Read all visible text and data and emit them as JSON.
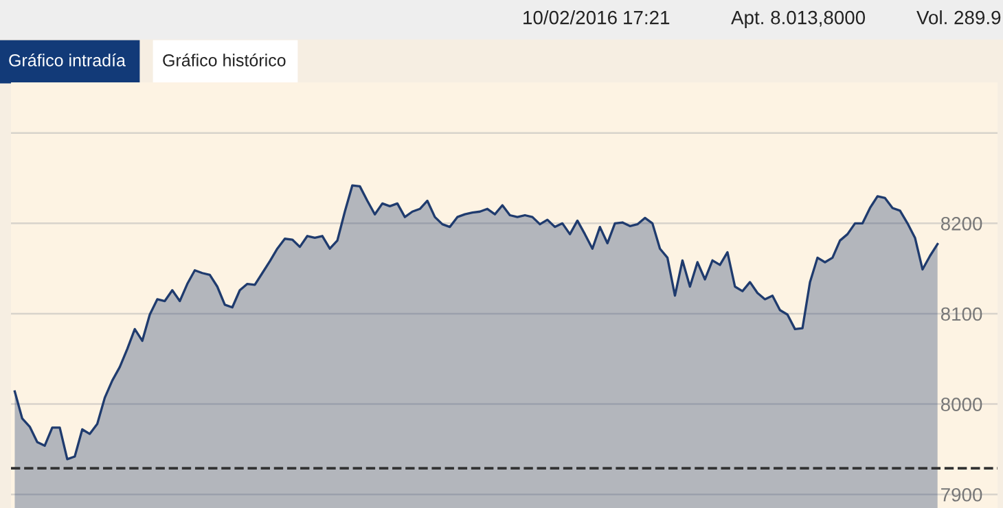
{
  "chart_data": {
    "type": "area",
    "categories": [
      null,
      null,
      null,
      null,
      null,
      null,
      null,
      null,
      null,
      null,
      null,
      null,
      null,
      null,
      null,
      null,
      null,
      null,
      null,
      null,
      null,
      null,
      null,
      null,
      null,
      null,
      null,
      null,
      null,
      null,
      null,
      null,
      null,
      null,
      null,
      null,
      null,
      null,
      null,
      null,
      null,
      null,
      null,
      null,
      null,
      null,
      null,
      null,
      null,
      null,
      null,
      null,
      null,
      null,
      null,
      null,
      null,
      null,
      null,
      null,
      null,
      null,
      null,
      null,
      null,
      null,
      null,
      null,
      null,
      null,
      null,
      null,
      null,
      null,
      null,
      null,
      null,
      null,
      null,
      null,
      null,
      null,
      null,
      null,
      null,
      null,
      null,
      null,
      null,
      null,
      null,
      null,
      null,
      null,
      null,
      null,
      null,
      null,
      null,
      null,
      null,
      null,
      null,
      null,
      null,
      null,
      null,
      null,
      null,
      null,
      null,
      null,
      null,
      null,
      null,
      null,
      null,
      null,
      null,
      null,
      null,
      null,
      null,
      null
    ],
    "series": [
      {
        "color": "#1f3b6e",
        "values": [
          8014,
          7984,
          7975,
          7958,
          7954,
          7974,
          7974,
          7939,
          7942,
          7972,
          7967,
          7978,
          8007,
          8026,
          8041,
          8061,
          8083,
          8070,
          8099,
          8116,
          8114,
          8126,
          8114,
          8133,
          8148,
          8145,
          8143,
          8130,
          8110,
          8107,
          8126,
          8133,
          8132,
          8145,
          8158,
          8172,
          8183,
          8182,
          8174,
          8186,
          8184,
          8186,
          8172,
          8181,
          8213,
          8242,
          8241,
          8225,
          8210,
          8222,
          8219,
          8222,
          8207,
          8213,
          8216,
          8225,
          8207,
          8199,
          8196,
          8207,
          8210,
          8212,
          8213,
          8216,
          8210,
          8220,
          8209,
          8207,
          8209,
          8207,
          8199,
          8204,
          8196,
          8200,
          8188,
          8203,
          8188,
          8172,
          8196,
          8178,
          8200,
          8201,
          8197,
          8199,
          8206,
          8200,
          8172,
          8162,
          8120,
          8159,
          8130,
          8157,
          8138,
          8159,
          8154,
          8168,
          8130,
          8125,
          8135,
          8123,
          8116,
          8120,
          8104,
          8099,
          8083,
          8084,
          8135,
          8162,
          8157,
          8162,
          8181,
          8188,
          8200,
          8200,
          8217,
          8230,
          8228,
          8217,
          8214,
          8200,
          8184,
          8149,
          8164,
          8177
        ]
      }
    ],
    "ylim": [
      7885,
      8356
    ],
    "yticks": [
      {
        "value": 8300,
        "label": null
      },
      8200,
      8100,
      8000,
      7900
    ],
    "grid": "y",
    "ref_lines": [
      {
        "axis": "y",
        "value": 7929,
        "color": "#333333",
        "line_style": "dashed"
      }
    ],
    "annotations": [
      "10/02/2016",
      "17:21",
      "Apt. 8.013,8000",
      "Vol. 289.9",
      "Gráfico intradía",
      "Gráfico histórico"
    ]
  }
}
